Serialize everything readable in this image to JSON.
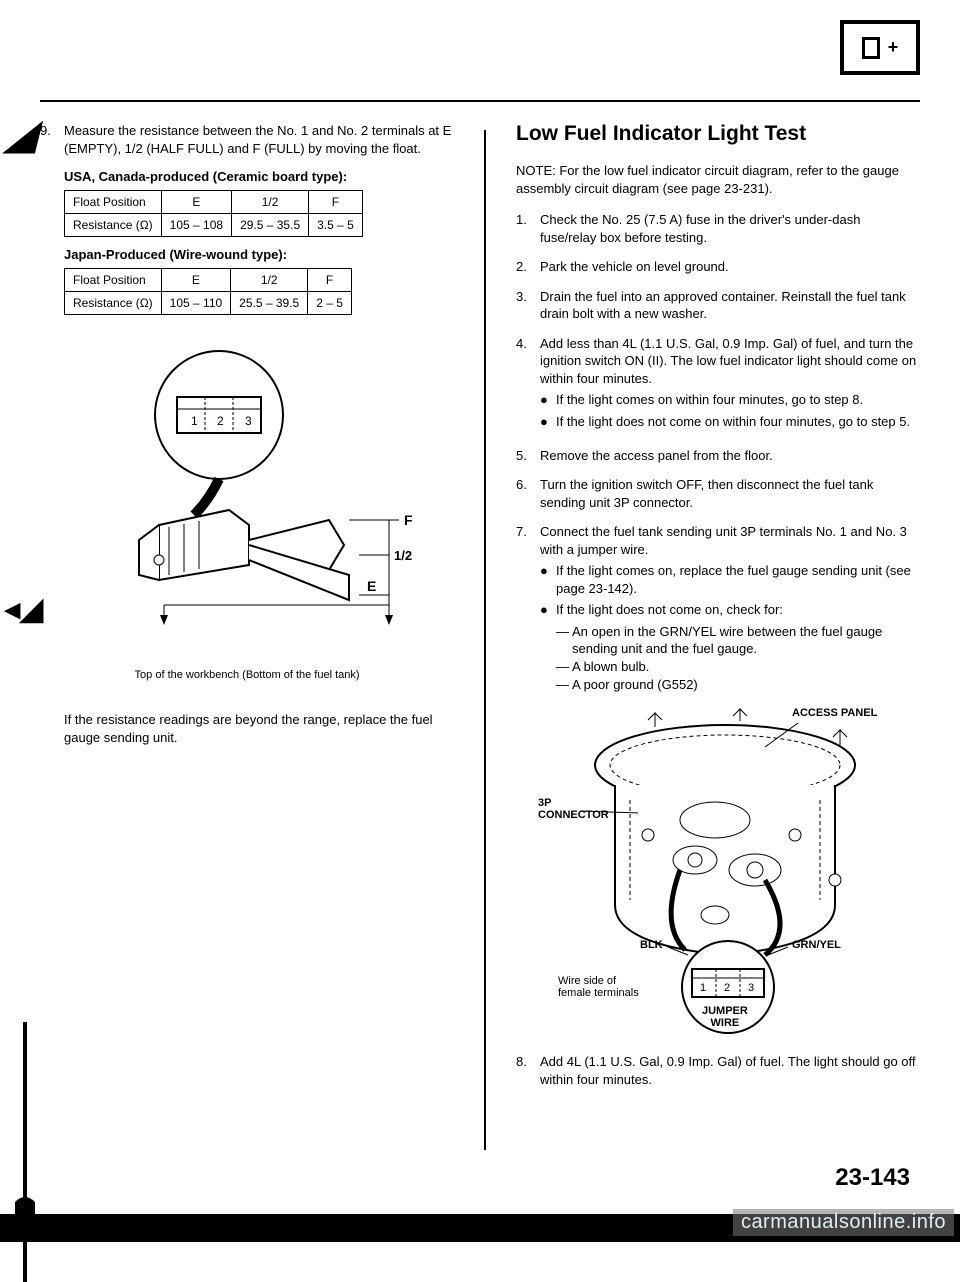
{
  "header": {
    "plus": "+"
  },
  "left": {
    "step9_num": "9.",
    "step9_text": "Measure the resistance between the No. 1 and No. 2 terminals at E (EMPTY), 1/2 (HALF FULL) and F (FULL) by moving the float.",
    "usa_label": "USA, Canada-produced (Ceramic board type):",
    "japan_label": "Japan-Produced (Wire-wound type):",
    "table_usa": {
      "headers": [
        "Float Position",
        "E",
        "1/2",
        "F"
      ],
      "row_label": "Resistance (Ω)",
      "values": [
        "105 – 108",
        "29.5 – 35.5",
        "3.5 – 5"
      ]
    },
    "table_japan": {
      "headers": [
        "Float Position",
        "E",
        "1/2",
        "F"
      ],
      "row_label": "Resistance (Ω)",
      "values": [
        "105 – 110",
        "25.5 – 39.5",
        "2 – 5"
      ]
    },
    "figure": {
      "conn_nums": [
        "1",
        "2",
        "3"
      ],
      "label_F": "F",
      "label_half": "1/2",
      "label_E": "E"
    },
    "caption": "Top of the workbench (Bottom of the fuel tank)",
    "closing": "If the resistance readings are beyond the range, replace the fuel gauge sending unit."
  },
  "right": {
    "title": "Low Fuel Indicator Light Test",
    "note": "NOTE: For the low fuel indicator circuit diagram, refer to the gauge assembly circuit diagram (see page 23-231).",
    "steps": [
      {
        "n": "1.",
        "t": "Check the No. 25 (7.5 A) fuse in the driver's under-dash fuse/relay box before testing."
      },
      {
        "n": "2.",
        "t": "Park the vehicle on level ground."
      },
      {
        "n": "3.",
        "t": "Drain the fuel into an approved container. Reinstall the fuel tank drain bolt with a new washer."
      },
      {
        "n": "4.",
        "t": "Add less than 4L (1.1 U.S. Gal, 0.9 Imp. Gal) of fuel, and turn the ignition switch ON (II). The low fuel indicator light should come on within four minutes.",
        "bullets": [
          "If the light comes on within four minutes, go to step 8.",
          "If the light does not come on within four minutes, go to step 5."
        ]
      },
      {
        "n": "5.",
        "t": "Remove the access panel from the floor."
      },
      {
        "n": "6.",
        "t": "Turn the ignition switch OFF, then disconnect the fuel tank sending unit 3P connector."
      },
      {
        "n": "7.",
        "t": "Connect the fuel tank sending unit 3P terminals No. 1 and No. 3 with a jumper wire.",
        "bullets": [
          "If the light comes on, replace the fuel gauge sending unit (see page 23-142).",
          "If the light does not come on, check for:"
        ],
        "dashes": [
          "An open in the GRN/YEL wire between the fuel gauge sending unit and the fuel gauge.",
          "A blown bulb.",
          "A poor ground (G552)"
        ]
      }
    ],
    "diagram": {
      "access_panel": "ACCESS PANEL",
      "connector": "3P\nCONNECTOR",
      "blk": "BLK",
      "grnyel": "GRN/YEL",
      "wire_side": "Wire side of\nfemale terminals",
      "jumper": "JUMPER\nWIRE",
      "conn_nums": [
        "1",
        "2",
        "3"
      ]
    },
    "step8_num": "8.",
    "step8_text": "Add 4L (1.1 U.S. Gal, 0.9 Imp. Gal) of fuel. The light should go off within four minutes."
  },
  "page_number": "23-143",
  "watermark": "carmanualsonline.info"
}
